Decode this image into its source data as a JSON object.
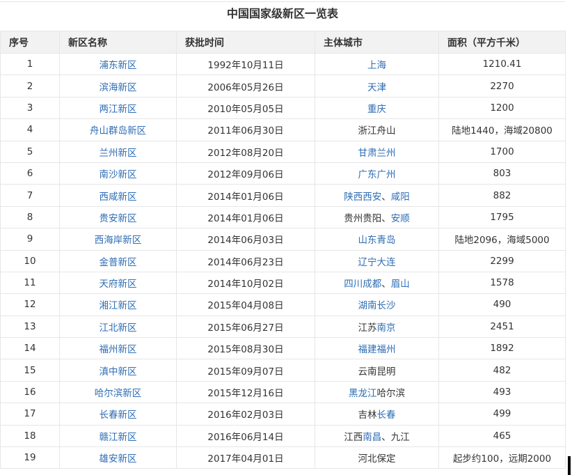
{
  "title": "中国国家级新区一览表",
  "colors": {
    "link": "#2e6db4",
    "header_bg": "#f2f2f2",
    "text": "#333333"
  },
  "columns": [
    "序号",
    "新区名称",
    "获批时间",
    "主体城市",
    "面积（平方千米）"
  ],
  "rows": [
    {
      "no": "1",
      "name": "浦东新区",
      "date": "1992年10月11日",
      "city": [
        {
          "text": "上海",
          "link": true
        }
      ],
      "area": "1210.41"
    },
    {
      "no": "2",
      "name": "滨海新区",
      "date": "2006年05月26日",
      "city": [
        {
          "text": "天津",
          "link": true
        }
      ],
      "area": "2270"
    },
    {
      "no": "3",
      "name": "两江新区",
      "date": "2010年05月05日",
      "city": [
        {
          "text": "重庆",
          "link": true
        }
      ],
      "area": "1200"
    },
    {
      "no": "4",
      "name": "舟山群岛新区",
      "date": "2011年06月30日",
      "city": [
        {
          "text": "浙江舟山",
          "link": false
        }
      ],
      "area": "陆地1440，海域20800"
    },
    {
      "no": "5",
      "name": "兰州新区",
      "date": "2012年08月20日",
      "city": [
        {
          "text": "甘肃兰州",
          "link": true
        }
      ],
      "area": "1700"
    },
    {
      "no": "6",
      "name": "南沙新区",
      "date": "2012年09月06日",
      "city": [
        {
          "text": "广东广州",
          "link": true
        }
      ],
      "area": "803"
    },
    {
      "no": "7",
      "name": "西咸新区",
      "date": "2014年01月06日",
      "city": [
        {
          "text": "陕西西安",
          "link": true
        },
        {
          "text": "、",
          "link": false
        },
        {
          "text": "咸阳",
          "link": true
        }
      ],
      "area": "882"
    },
    {
      "no": "8",
      "name": "贵安新区",
      "date": "2014年01月06日",
      "city": [
        {
          "text": "贵州贵阳、",
          "link": false
        },
        {
          "text": "安顺",
          "link": true
        }
      ],
      "area": "1795"
    },
    {
      "no": "9",
      "name": "西海岸新区",
      "date": "2014年06月03日",
      "city": [
        {
          "text": "山东青岛",
          "link": true
        }
      ],
      "area": "陆地2096，海域5000"
    },
    {
      "no": "10",
      "name": "金普新区",
      "date": "2014年06月23日",
      "city": [
        {
          "text": "辽宁大连",
          "link": true
        }
      ],
      "area": "2299"
    },
    {
      "no": "11",
      "name": "天府新区",
      "date": "2014年10月02日",
      "city": [
        {
          "text": "四川成都",
          "link": true
        },
        {
          "text": "、",
          "link": false
        },
        {
          "text": "眉山",
          "link": true
        }
      ],
      "area": "1578"
    },
    {
      "no": "12",
      "name": "湘江新区",
      "date": "2015年04月08日",
      "city": [
        {
          "text": "湖南长沙",
          "link": true
        }
      ],
      "area": "490"
    },
    {
      "no": "13",
      "name": "江北新区",
      "date": "2015年06月27日",
      "city": [
        {
          "text": "江苏",
          "link": false
        },
        {
          "text": "南京",
          "link": true
        }
      ],
      "area": "2451"
    },
    {
      "no": "14",
      "name": "福州新区",
      "date": "2015年08月30日",
      "city": [
        {
          "text": "福建福州",
          "link": true
        }
      ],
      "area": "1892"
    },
    {
      "no": "15",
      "name": "滇中新区",
      "date": "2015年09月07日",
      "city": [
        {
          "text": "云南昆明",
          "link": false
        }
      ],
      "area": "482"
    },
    {
      "no": "16",
      "name": "哈尔滨新区",
      "date": "2015年12月16日",
      "city": [
        {
          "text": "黑龙江",
          "link": true
        },
        {
          "text": "哈尔滨",
          "link": false
        }
      ],
      "area": "493"
    },
    {
      "no": "17",
      "name": "长春新区",
      "date": "2016年02月03日",
      "city": [
        {
          "text": "吉林",
          "link": false
        },
        {
          "text": "长春",
          "link": true
        }
      ],
      "area": "499"
    },
    {
      "no": "18",
      "name": "赣江新区",
      "date": "2016年06月14日",
      "city": [
        {
          "text": "江西",
          "link": false
        },
        {
          "text": "南昌",
          "link": true
        },
        {
          "text": "、九江",
          "link": false
        }
      ],
      "area": "465"
    },
    {
      "no": "19",
      "name": "雄安新区",
      "date": "2017年04月01日",
      "city": [
        {
          "text": "河北保定",
          "link": false
        }
      ],
      "area": "起步约100，远期2000"
    }
  ]
}
